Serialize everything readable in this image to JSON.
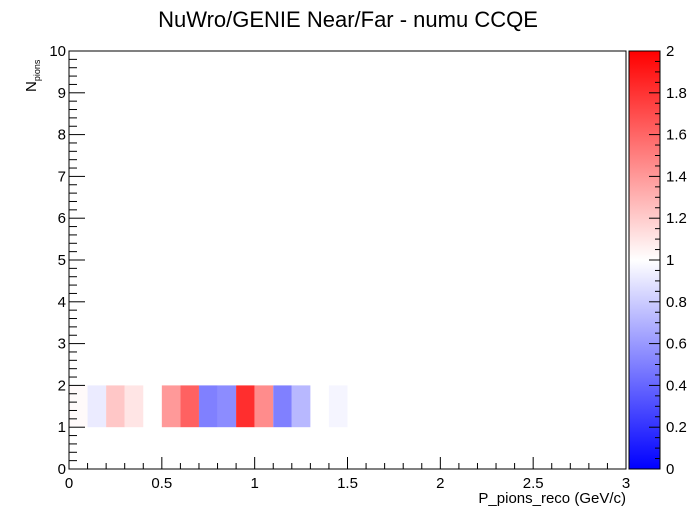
{
  "chart_data": {
    "type": "heatmap",
    "title": "NuWro/GENIE Near/Far - numu CCQE",
    "xlabel": "P_pions_reco (GeV/c)",
    "ylabel": "N",
    "ylabel_sub": "pions",
    "xlim": [
      0,
      3
    ],
    "ylim": [
      0,
      10
    ],
    "x_ticks": [
      "0",
      "0.5",
      "1",
      "1.5",
      "2",
      "2.5",
      "3"
    ],
    "y_ticks": [
      "0",
      "1",
      "2",
      "3",
      "4",
      "5",
      "6",
      "7",
      "8",
      "9",
      "10"
    ],
    "zlim": [
      0,
      2
    ],
    "z_ticks": [
      "0",
      "0.2",
      "0.4",
      "0.6",
      "0.8",
      "1",
      "1.2",
      "1.4",
      "1.6",
      "1.8",
      "2"
    ],
    "colors": {
      "low": "#0000ff",
      "mid": "#ffffff",
      "high": "#ff0000"
    },
    "bin_width": 0.1,
    "row_y": [
      1,
      2
    ],
    "cells": [
      {
        "x": 0.0,
        "z": 1.02
      },
      {
        "x": 0.1,
        "z": 0.92
      },
      {
        "x": 0.2,
        "z": 1.22
      },
      {
        "x": 0.3,
        "z": 1.1
      },
      {
        "x": 0.5,
        "z": 1.4
      },
      {
        "x": 0.6,
        "z": 1.62
      },
      {
        "x": 0.7,
        "z": 0.5
      },
      {
        "x": 0.8,
        "z": 0.55
      },
      {
        "x": 0.9,
        "z": 1.82
      },
      {
        "x": 1.0,
        "z": 1.45
      },
      {
        "x": 1.1,
        "z": 0.5
      },
      {
        "x": 1.2,
        "z": 0.72
      },
      {
        "x": 1.4,
        "z": 0.96
      }
    ]
  }
}
